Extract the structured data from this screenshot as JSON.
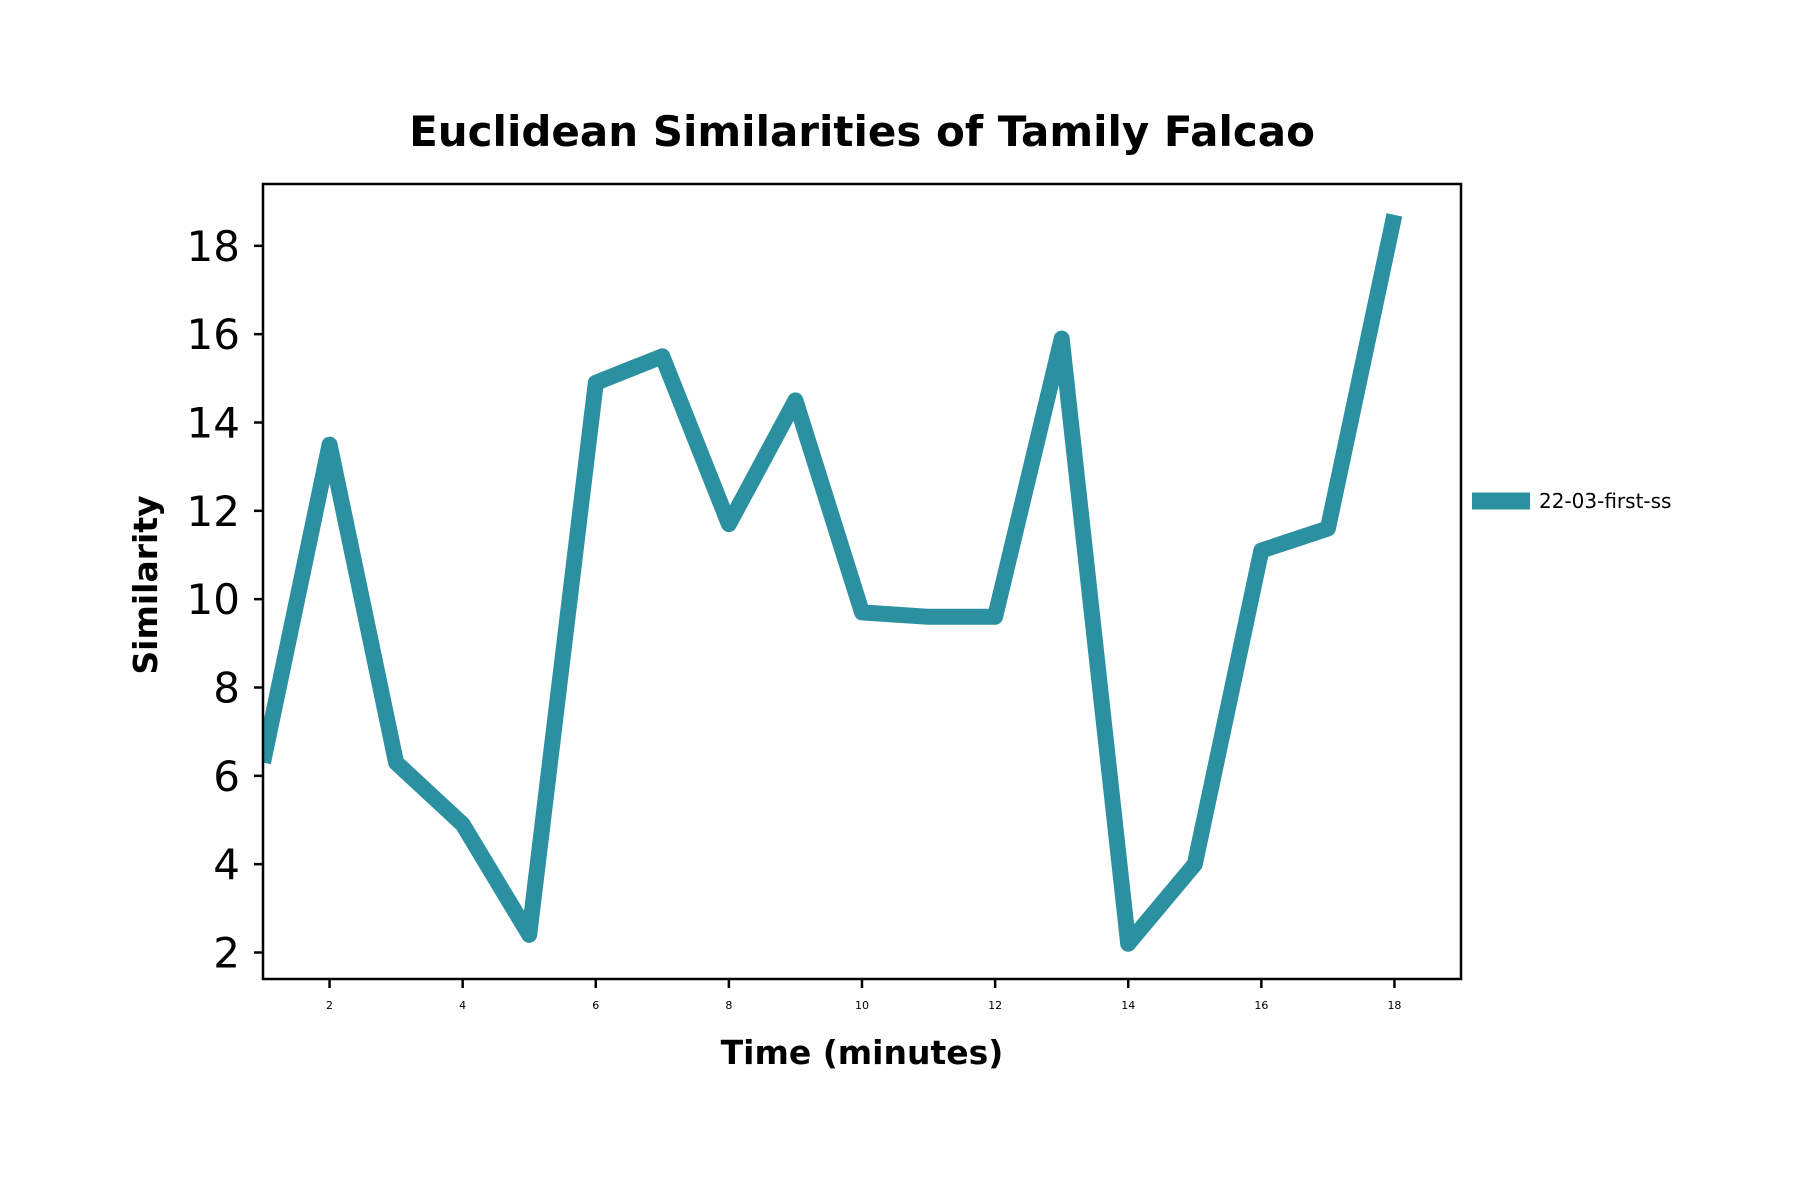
{
  "chart_data": {
    "type": "line",
    "title": "Euclidean Similarities of Tamily Falcao",
    "xlabel": "Time (minutes)",
    "ylabel": "Similarity",
    "xlim": [
      1,
      19
    ],
    "ylim": [
      1.4,
      19.4
    ],
    "xticks": [
      2,
      4,
      6,
      8,
      10,
      12,
      14,
      16,
      18
    ],
    "yticks": [
      2,
      4,
      6,
      8,
      10,
      12,
      14,
      16,
      18
    ],
    "grid": false,
    "legend_position": "right",
    "series": [
      {
        "name": "22-03-first-ss",
        "color": "#2b90a0",
        "x": [
          1,
          2,
          3,
          4,
          5,
          6,
          7,
          8,
          9,
          10,
          11,
          12,
          13,
          14,
          15,
          16,
          17,
          18
        ],
        "values": [
          6.3,
          13.5,
          6.3,
          4.9,
          2.4,
          14.9,
          15.5,
          11.7,
          14.5,
          9.7,
          9.6,
          9.6,
          15.9,
          2.2,
          4.0,
          11.1,
          11.6,
          18.7
        ]
      }
    ]
  }
}
